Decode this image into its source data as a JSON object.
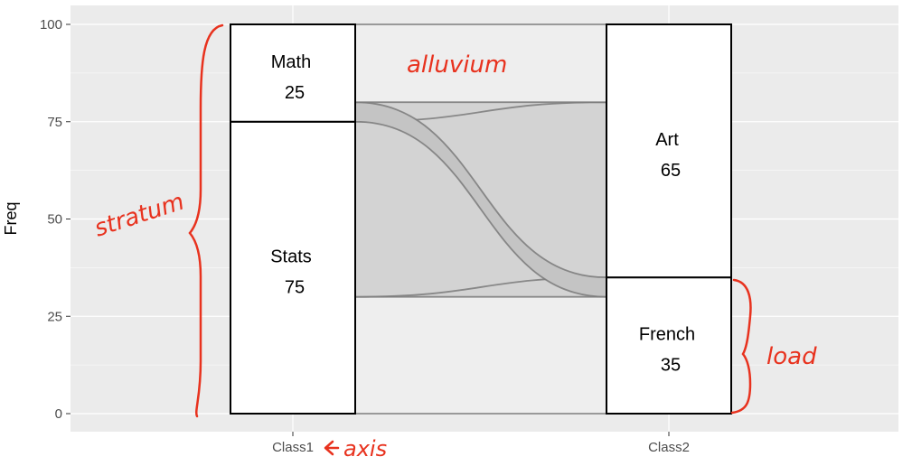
{
  "chart_data": {
    "type": "alluvial",
    "ylabel": "Freq",
    "ylim": [
      0,
      100
    ],
    "yticks": [
      0,
      25,
      50,
      75,
      100
    ],
    "axes": [
      "Class1",
      "Class2"
    ],
    "strata": [
      {
        "axis": "Class1",
        "name": "Stats",
        "value": 75,
        "bottom": 0
      },
      {
        "axis": "Class1",
        "name": "Math",
        "value": 25,
        "bottom": 75
      },
      {
        "axis": "Class2",
        "name": "French",
        "value": 35,
        "bottom": 0
      },
      {
        "axis": "Class2",
        "name": "Art",
        "value": 65,
        "bottom": 35
      }
    ],
    "flows": [
      {
        "from": "Stats",
        "to": "French",
        "value": 30,
        "from_bottom": 0,
        "to_bottom": 0
      },
      {
        "from": "Stats",
        "to": "Art",
        "value": 45,
        "from_bottom": 30,
        "to_bottom": 35
      },
      {
        "from": "Math",
        "to": "French",
        "value": 5,
        "from_bottom": 75,
        "to_bottom": 30
      },
      {
        "from": "Math",
        "to": "Art",
        "value": 20,
        "from_bottom": 80,
        "to_bottom": 80
      }
    ],
    "annotations": {
      "alluvium": "alluvium",
      "stratum": "stratum",
      "load": "load",
      "axis": "axis"
    },
    "colors": {
      "panel": "#ebebeb",
      "grid": "#ffffff",
      "flow_fill": "#d3d3d3",
      "flow_highlight": "#c4c4c4",
      "flow_line": "#7a7a7a",
      "stratum_fill": "#ffffff",
      "stratum_border": "#000000",
      "annotation": "#e8321e"
    }
  }
}
